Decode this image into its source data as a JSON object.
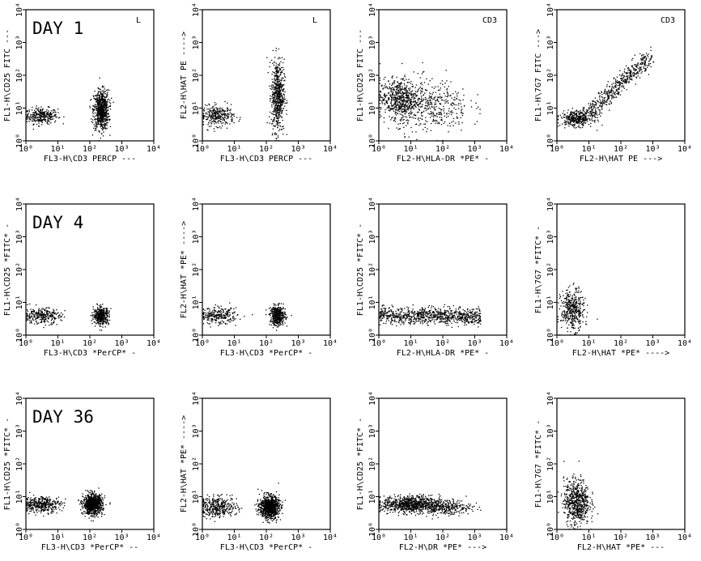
{
  "figure": {
    "rows": [
      {
        "day_label": "DAY 1"
      },
      {
        "day_label": "DAY 4"
      },
      {
        "day_label": "DAY 36"
      }
    ]
  },
  "chart_data": [
    {
      "type": "scatter",
      "row": 0,
      "col": 0,
      "day_label": "DAY 1",
      "corner_label": "L",
      "xlabel": "FL3-H\\CD3 PERCP ---",
      "ylabel": "FL1-H\\CD25 FITC ---",
      "x_scale": "log",
      "y_scale": "log",
      "xlim": [
        1,
        10000
      ],
      "ylim": [
        1,
        10000
      ],
      "x_ticks": [
        "10⁰",
        "10¹",
        "10²",
        "10³",
        "10⁴"
      ],
      "y_ticks": [
        "10⁰",
        "10¹",
        "10²",
        "10³",
        "10⁴"
      ],
      "clusters": [
        {
          "x": 3,
          "y": 6,
          "sx": 0.25,
          "sy": 0.12,
          "n": 300
        },
        {
          "x": 220,
          "y": 9,
          "sx": 0.12,
          "sy": 0.3,
          "n": 700
        }
      ]
    },
    {
      "type": "scatter",
      "row": 0,
      "col": 1,
      "corner_label": "L",
      "xlabel": "FL3-H\\CD3 PERCP ---",
      "ylabel": "FL2-H\\HAT PE ---->",
      "x_scale": "log",
      "y_scale": "log",
      "xlim": [
        1,
        10000
      ],
      "ylim": [
        1,
        10000
      ],
      "x_ticks": [
        "10⁰",
        "10¹",
        "10²",
        "10³",
        "10⁴"
      ],
      "y_ticks": [
        "10⁰",
        "10¹",
        "10²",
        "10³",
        "10⁴"
      ],
      "clusters": [
        {
          "x": 3,
          "y": 6,
          "sx": 0.25,
          "sy": 0.15,
          "n": 300
        },
        {
          "x": 220,
          "y": 25,
          "sx": 0.1,
          "sy": 0.55,
          "n": 600
        }
      ]
    },
    {
      "type": "scatter",
      "row": 0,
      "col": 2,
      "corner_label": "CD3",
      "xlabel": "FL2-H\\HLA-DR *PE* -",
      "ylabel": "FL1-H\\CD25 FITC ---",
      "x_scale": "log",
      "y_scale": "log",
      "xlim": [
        1,
        10000
      ],
      "ylim": [
        1,
        10000
      ],
      "x_ticks": [
        "10⁰",
        "10¹",
        "10²",
        "10³",
        "10⁴"
      ],
      "y_ticks": [
        "10⁰",
        "10¹",
        "10²",
        "10³",
        "10⁴"
      ],
      "clusters": [
        {
          "x": 4,
          "y": 20,
          "sx": 0.3,
          "sy": 0.3,
          "n": 550
        },
        {
          "x": 40,
          "y": 12,
          "sx": 0.6,
          "sy": 0.4,
          "n": 450
        }
      ]
    },
    {
      "type": "scatter",
      "row": 0,
      "col": 3,
      "corner_label": "CD3",
      "xlabel": "FL2-H\\HAT PE --->",
      "ylabel": "FL1-H\\7G7 FITC --->",
      "x_scale": "log",
      "y_scale": "log",
      "xlim": [
        1,
        10000
      ],
      "ylim": [
        1,
        10000
      ],
      "x_ticks": [
        "10⁰",
        "10¹",
        "10²",
        "10³",
        "10⁴"
      ],
      "y_ticks": [
        "10⁰",
        "10¹",
        "10²",
        "10³",
        "10⁴"
      ],
      "clusters": [
        {
          "x": 4,
          "y": 5,
          "sx": 0.25,
          "sy": 0.12,
          "n": 350
        },
        {
          "diag": true,
          "x0": 8,
          "x1": 800,
          "y0": 6,
          "y1": 400,
          "n": 500
        }
      ]
    },
    {
      "type": "scatter",
      "row": 1,
      "col": 0,
      "day_label": "DAY 4",
      "xlabel": "FL3-H\\CD3 *PerCP* -",
      "ylabel": "FL1-H\\CD25 *FITC* -",
      "x_scale": "log",
      "y_scale": "log",
      "xlim": [
        1,
        10000
      ],
      "ylim": [
        1,
        10000
      ],
      "x_ticks": [
        "10⁰",
        "10¹",
        "10²",
        "10³",
        "10⁴"
      ],
      "y_ticks": [
        "10⁰",
        "10¹",
        "10²",
        "10³",
        "10⁴"
      ],
      "clusters": [
        {
          "x": 3,
          "y": 4,
          "sx": 0.3,
          "sy": 0.12,
          "n": 280
        },
        {
          "x": 220,
          "y": 4,
          "sx": 0.12,
          "sy": 0.13,
          "n": 420
        }
      ]
    },
    {
      "type": "scatter",
      "row": 1,
      "col": 1,
      "xlabel": "FL3-H\\CD3 *PerCP* -",
      "ylabel": "FL2-H\\HAT *PE* ---->",
      "x_scale": "log",
      "y_scale": "log",
      "xlim": [
        1,
        10000
      ],
      "ylim": [
        1,
        10000
      ],
      "x_ticks": [
        "10⁰",
        "10¹",
        "10²",
        "10³",
        "10⁴"
      ],
      "y_ticks": [
        "10⁰",
        "10¹",
        "10²",
        "10³",
        "10⁴"
      ],
      "clusters": [
        {
          "x": 3,
          "y": 4,
          "sx": 0.3,
          "sy": 0.12,
          "n": 260
        },
        {
          "x": 220,
          "y": 4,
          "sx": 0.12,
          "sy": 0.15,
          "n": 400
        }
      ]
    },
    {
      "type": "scatter",
      "row": 1,
      "col": 2,
      "xlabel": "FL2-H\\HLA-DR *PE* -",
      "ylabel": "FL1-H\\CD25 *FITC* -",
      "x_scale": "log",
      "y_scale": "log",
      "xlim": [
        1,
        10000
      ],
      "ylim": [
        1,
        10000
      ],
      "x_ticks": [
        "10⁰",
        "10¹",
        "10²",
        "10³",
        "10⁴"
      ],
      "y_ticks": [
        "10⁰",
        "10¹",
        "10²",
        "10³",
        "10⁴"
      ],
      "clusters": [
        {
          "band": true,
          "x0": 1,
          "x1": 1500,
          "y": 4,
          "sy": 0.12,
          "n": 850
        }
      ]
    },
    {
      "type": "scatter",
      "row": 1,
      "col": 3,
      "xlabel": "FL2-H\\HAT *PE* ---->",
      "ylabel": "FL1-H\\7G7 *FITC* -",
      "x_scale": "log",
      "y_scale": "log",
      "xlim": [
        1,
        10000
      ],
      "ylim": [
        1,
        10000
      ],
      "x_ticks": [
        "10⁰",
        "10¹",
        "10²",
        "10³",
        "10⁴"
      ],
      "y_ticks": [
        "10⁰",
        "10¹",
        "10²",
        "10³",
        "10⁴"
      ],
      "clusters": [
        {
          "x": 3,
          "y": 6,
          "sx": 0.18,
          "sy": 0.3,
          "n": 420
        }
      ]
    },
    {
      "type": "scatter",
      "row": 2,
      "col": 0,
      "day_label": "DAY 36",
      "xlabel": "FL3-H\\CD3 *PerCP* --",
      "ylabel": "FL1-H\\CD25 *FITC* -",
      "x_scale": "log",
      "y_scale": "log",
      "xlim": [
        1,
        10000
      ],
      "ylim": [
        1,
        10000
      ],
      "x_ticks": [
        "10⁰",
        "10¹",
        "10²",
        "10³",
        "10⁴"
      ],
      "y_ticks": [
        "10⁰",
        "10¹",
        "10²",
        "10³",
        "10⁴"
      ],
      "clusters": [
        {
          "x": 3,
          "y": 6,
          "sx": 0.3,
          "sy": 0.12,
          "n": 380
        },
        {
          "x": 120,
          "y": 6,
          "sx": 0.15,
          "sy": 0.15,
          "n": 900
        }
      ]
    },
    {
      "type": "scatter",
      "row": 2,
      "col": 1,
      "xlabel": "FL3-H\\CD3 *PerCP* -",
      "ylabel": "FL2-H\\HAT *PE* ---->",
      "x_scale": "log",
      "y_scale": "log",
      "xlim": [
        1,
        10000
      ],
      "ylim": [
        1,
        10000
      ],
      "x_ticks": [
        "10⁰",
        "10¹",
        "10²",
        "10³",
        "10⁴"
      ],
      "y_ticks": [
        "10⁰",
        "10¹",
        "10²",
        "10³",
        "10⁴"
      ],
      "clusters": [
        {
          "x": 3,
          "y": 5,
          "sx": 0.3,
          "sy": 0.15,
          "n": 380
        },
        {
          "x": 120,
          "y": 5,
          "sx": 0.15,
          "sy": 0.17,
          "n": 900
        }
      ]
    },
    {
      "type": "scatter",
      "row": 2,
      "col": 2,
      "xlabel": "FL2-H\\DR *PE* --->",
      "ylabel": "FL1-H\\CD25 *FITC* -",
      "x_scale": "log",
      "y_scale": "log",
      "xlim": [
        1,
        10000
      ],
      "ylim": [
        1,
        10000
      ],
      "x_ticks": [
        "10⁰",
        "10¹",
        "10²",
        "10³",
        "10⁴"
      ],
      "y_ticks": [
        "10⁰",
        "10¹",
        "10²",
        "10³",
        "10⁴"
      ],
      "clusters": [
        {
          "x": 10,
          "y": 6,
          "sx": 0.45,
          "sy": 0.13,
          "n": 800
        },
        {
          "x": 120,
          "y": 5,
          "sx": 0.4,
          "sy": 0.12,
          "n": 300
        }
      ]
    },
    {
      "type": "scatter",
      "row": 2,
      "col": 3,
      "xlabel": "FL2-H\\HAT *PE* ---",
      "ylabel": "FL1-H\\7G7 *FITC* -",
      "x_scale": "log",
      "y_scale": "log",
      "xlim": [
        1,
        10000
      ],
      "ylim": [
        1,
        10000
      ],
      "x_ticks": [
        "10⁰",
        "10¹",
        "10²",
        "10³",
        "10⁴"
      ],
      "y_ticks": [
        "10⁰",
        "10¹",
        "10²",
        "10³",
        "10⁴"
      ],
      "clusters": [
        {
          "x": 4,
          "y": 7,
          "sx": 0.2,
          "sy": 0.35,
          "n": 650
        }
      ]
    }
  ]
}
